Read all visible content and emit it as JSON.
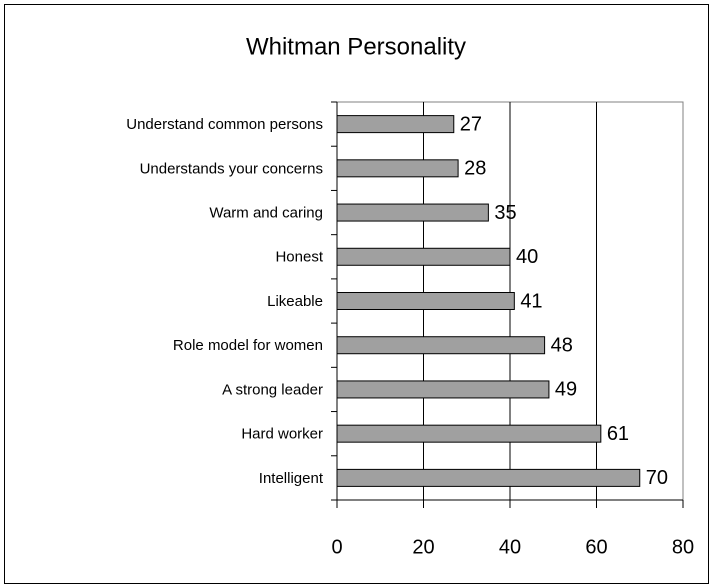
{
  "chart_data": {
    "type": "bar",
    "orientation": "horizontal",
    "title": "Whitman Personality",
    "categories": [
      "Understand common persons",
      "Understands your concerns",
      "Warm and caring",
      "Honest",
      "Likeable",
      "Role model for women",
      "A strong leader",
      "Hard worker",
      "Intelligent"
    ],
    "values": [
      27,
      28,
      35,
      40,
      41,
      48,
      49,
      61,
      70
    ],
    "color": "#a0a0a0",
    "xlim": [
      0,
      80
    ],
    "xticks": [
      0,
      20,
      40,
      60,
      80
    ],
    "grid": true
  }
}
